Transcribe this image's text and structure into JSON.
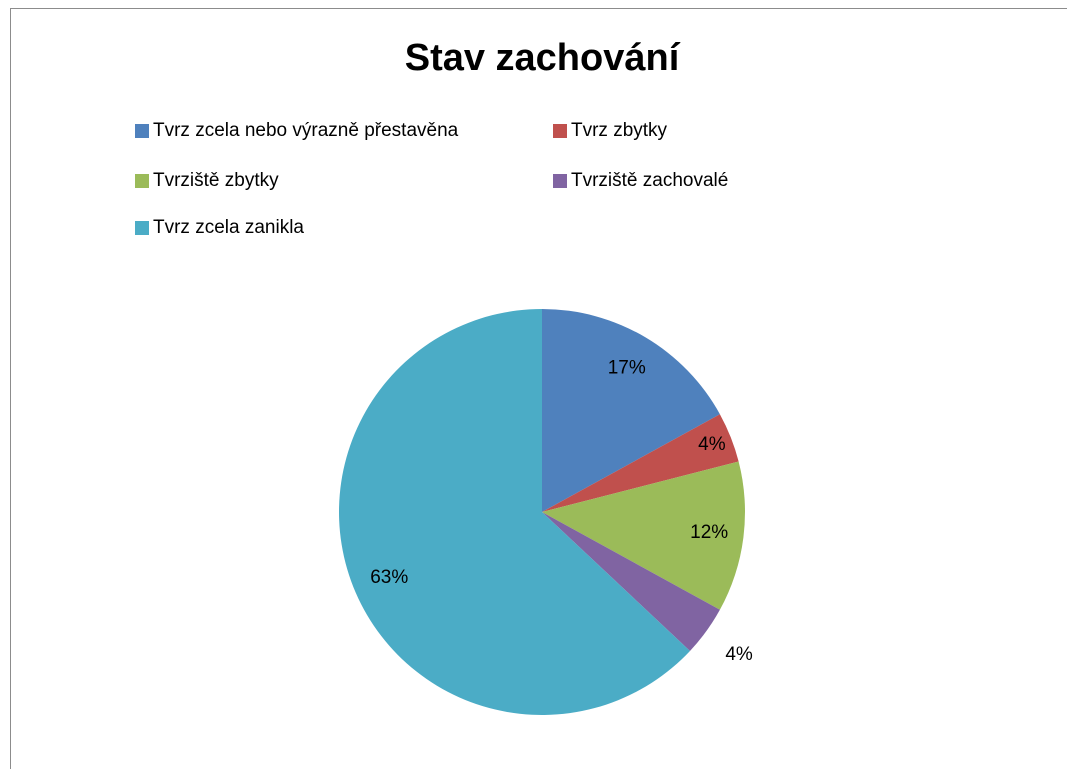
{
  "chart_data": {
    "type": "pie",
    "title": "Stav zachování",
    "categories": [
      "Tvrz zcela nebo výrazně přestavěna",
      "Tvrz zbytky",
      "Tvrziště zbytky",
      "Tvrziště zachovalé",
      "Tvrz zcela zanikla"
    ],
    "values": [
      17,
      4,
      12,
      4,
      63
    ],
    "value_labels": [
      "17%",
      "4%",
      "12%",
      "4%",
      "63%"
    ],
    "colors": [
      "#4f81bd",
      "#c0504d",
      "#9bbb59",
      "#8064a2",
      "#4bacc6"
    ],
    "legend": "top"
  }
}
